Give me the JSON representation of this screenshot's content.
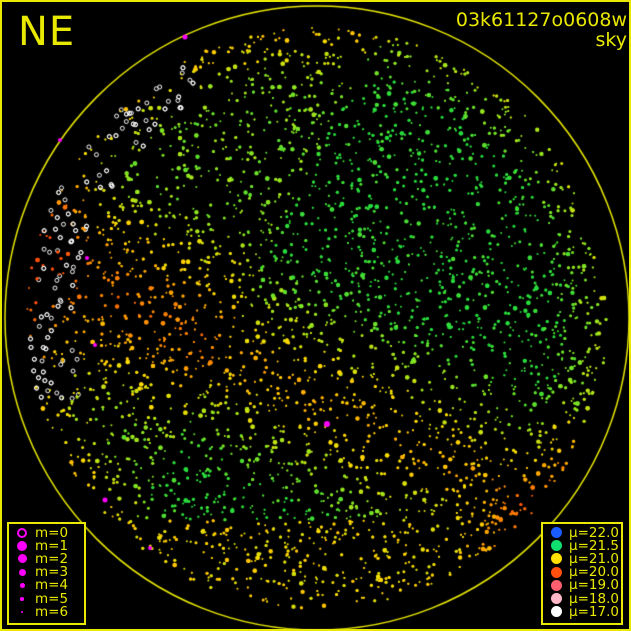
{
  "header": {
    "direction": "NE",
    "image_id": "03k61127o0608w",
    "mode": "sky"
  },
  "colors": {
    "frame": "#e8e800",
    "magnitude_marker": "#ff00ff"
  },
  "magnitude_legend": [
    {
      "label": "m=0",
      "size": 5,
      "hollow": true
    },
    {
      "label": "m=1",
      "size": 5
    },
    {
      "label": "m=2",
      "size": 4.5
    },
    {
      "label": "m=3",
      "size": 3.5
    },
    {
      "label": "m=4",
      "size": 2.5
    },
    {
      "label": "m=5",
      "size": 2
    },
    {
      "label": "m=6",
      "size": 1.2
    }
  ],
  "brightness_legend": [
    {
      "label": "μ=22.0",
      "color": "#1a5cff"
    },
    {
      "label": "μ=21.5",
      "color": "#10e070"
    },
    {
      "label": "μ=21.0",
      "color": "#ffe000"
    },
    {
      "label": "μ=20.0",
      "color": "#ff5010"
    },
    {
      "label": "μ=19.0",
      "color": "#ff6070"
    },
    {
      "label": "μ=18.0",
      "color": "#ffb8c8"
    },
    {
      "label": "μ=17.0",
      "color": "#ffffff"
    }
  ]
}
